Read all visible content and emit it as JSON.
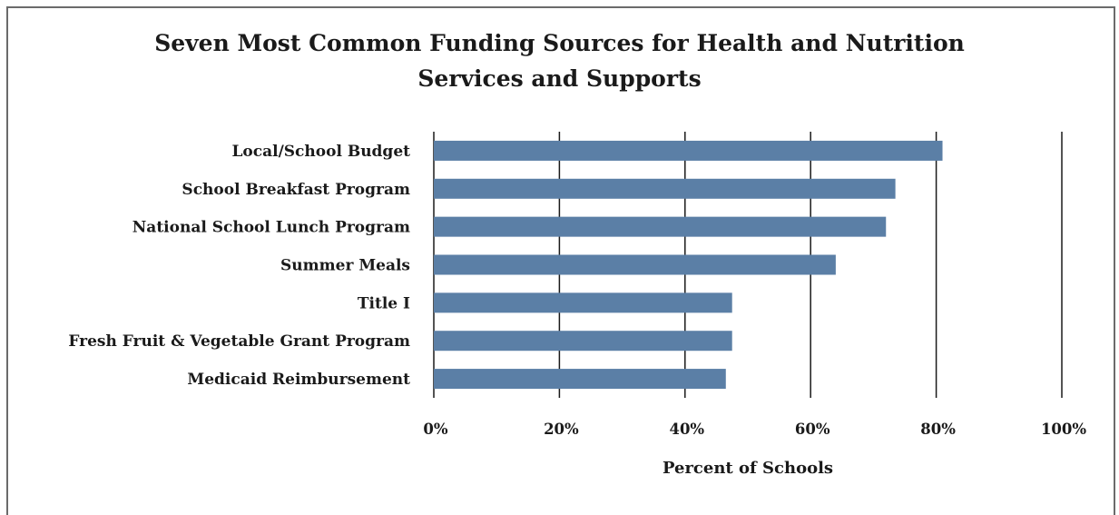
{
  "chart_data": {
    "type": "bar",
    "orientation": "horizontal",
    "title": "Seven Most Common Funding Sources for Health and Nutrition Services and Supports",
    "title_lines": [
      "Seven Most Common Funding Sources for Health and Nutrition",
      "Services and Supports"
    ],
    "categories": [
      "Local/School Budget",
      "School Breakfast Program",
      "National School Lunch Program",
      "Summer Meals",
      "Title I",
      "Fresh Fruit & Vegetable Grant Program",
      "Medicaid Reimbursement"
    ],
    "values": [
      81,
      73.5,
      72,
      64,
      47.5,
      47.5,
      46.5
    ],
    "xlabel": "Percent of Schools",
    "ylabel": "",
    "xlim": [
      0,
      100
    ],
    "ticks": [
      0,
      20,
      40,
      60,
      80,
      100
    ],
    "tick_labels": [
      "0%",
      "20%",
      "40%",
      "60%",
      "80%",
      "100%"
    ],
    "grid": "vertical",
    "legend": "none",
    "bar_color": "#5b7fa6",
    "grid_color": "#1a1a1a"
  }
}
